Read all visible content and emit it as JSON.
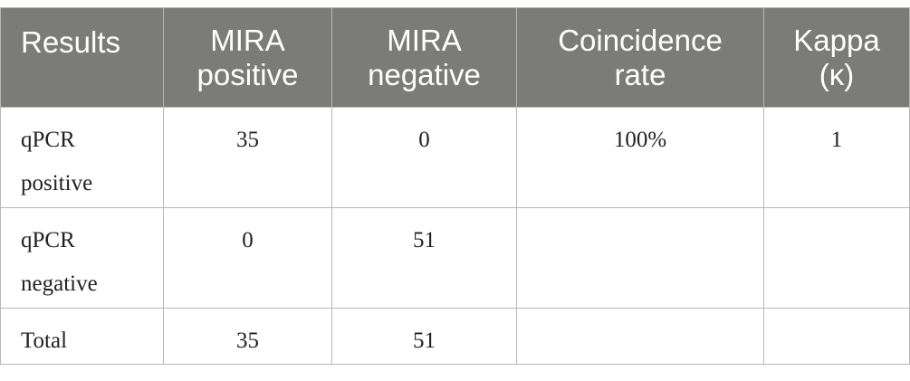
{
  "table": {
    "headers": [
      {
        "line1": "Results",
        "line2": ""
      },
      {
        "line1": "MIRA",
        "line2": "positive"
      },
      {
        "line1": "MIRA",
        "line2": "negative"
      },
      {
        "line1": "Coincidence",
        "line2": "rate"
      },
      {
        "line1": "Kappa",
        "line2": "(κ)"
      }
    ],
    "rows": [
      {
        "label_line1": "qPCR",
        "label_line2": "positive",
        "mira_positive": "35",
        "mira_negative": "0",
        "coincidence_rate": "100%",
        "kappa": "1"
      },
      {
        "label_line1": "qPCR",
        "label_line2": "negative",
        "mira_positive": "0",
        "mira_negative": "51",
        "coincidence_rate": "",
        "kappa": ""
      },
      {
        "label_line1": "Total",
        "label_line2": "",
        "mira_positive": "35",
        "mira_negative": "51",
        "coincidence_rate": "",
        "kappa": ""
      }
    ]
  }
}
